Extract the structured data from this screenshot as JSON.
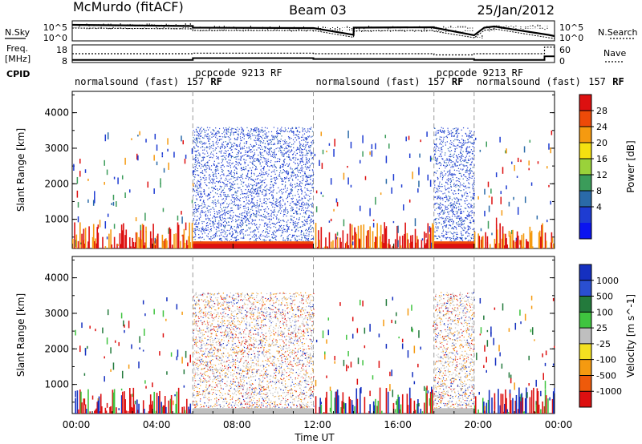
{
  "header": {
    "station": "McMurdo (fitACF)",
    "beam": "Beam 03",
    "date": "25/Jan/2012"
  },
  "side_labels": {
    "nsky": "N.Sky",
    "nsearch": "N.Search",
    "freq": "Freq.",
    "freq_unit": "[MHz]",
    "nave": "Nave",
    "cpid": "CPID"
  },
  "chart_data": [
    {
      "type": "line",
      "panel": "noise",
      "y_ticks_left": [
        "10^5",
        "10^0"
      ],
      "y_ticks_right": [
        "10^5",
        "10^0"
      ],
      "series": [
        {
          "name": "N.Sky",
          "x": [
            0,
            6,
            6,
            12,
            14,
            14.01,
            18,
            18.01,
            20,
            20.5,
            21,
            23.7,
            24
          ],
          "values": [
            4.0,
            3.7,
            3.3,
            3.2,
            1.5,
            3.3,
            3.4,
            3.3,
            1.4,
            3.3,
            3.6,
            1.5,
            1.2
          ]
        },
        {
          "name": "N.Search",
          "x": [
            0,
            6,
            6,
            12,
            14,
            14.01,
            18,
            18.01,
            20,
            20.5,
            21,
            23.7,
            24
          ],
          "values": [
            3.2,
            3.0,
            2.6,
            2.6,
            0.9,
            2.5,
            2.6,
            2.4,
            0.8,
            2.6,
            3.0,
            0.8,
            0.6
          ]
        }
      ]
    },
    {
      "type": "line",
      "panel": "freq-nave",
      "y_ticks_left": [
        "18",
        "8"
      ],
      "y_ticks_right": [
        "60",
        "0"
      ],
      "series": [
        {
          "name": "Freq.",
          "x": [
            0,
            6,
            6,
            12,
            12,
            18,
            18,
            20,
            20,
            23.5,
            23.5,
            24
          ],
          "values": [
            9.5,
            9.5,
            10.5,
            10.5,
            10,
            10,
            10,
            10,
            9.5,
            9.5,
            11.5,
            11.5
          ]
        },
        {
          "name": "Nave",
          "x": [
            0,
            6,
            6,
            12,
            12,
            18,
            18,
            20,
            20,
            23.5,
            23.5,
            24
          ],
          "values": [
            30,
            30,
            32,
            32,
            30,
            30,
            26,
            26,
            30,
            30,
            52,
            52
          ]
        }
      ]
    },
    {
      "type": "table",
      "panel": "cpid",
      "segments": [
        {
          "label": "normalsound (fast)",
          "code": "157",
          "suffix": "RF",
          "start": 0,
          "end": 6
        },
        {
          "label": "pcpcode 9213 RF",
          "start": 6,
          "end": 12
        },
        {
          "label": "normalsound (fast)",
          "code": "157",
          "suffix": "RF",
          "start": 12,
          "end": 18
        },
        {
          "label": "pcpcode 9213 RF",
          "start": 18,
          "end": 20
        },
        {
          "label": "normalsound (fast)",
          "code": "157",
          "suffix": "RF",
          "start": 20,
          "end": 24
        }
      ]
    },
    {
      "type": "heatmap",
      "panel": "power",
      "ylabel": "Slant Range [km]",
      "ylim": [
        180,
        4600
      ],
      "y_ticks": [
        1000,
        2000,
        3000,
        4000
      ],
      "colorbar_label": "Power [dB]",
      "colorbar_ticks": [
        28,
        24,
        20,
        16,
        12,
        8,
        4
      ],
      "colorbar_colors": [
        "#dd1010",
        "#ee4a08",
        "#f59a10",
        "#f5e010",
        "#9ad23a",
        "#3b9c5a",
        "#2a6aa8",
        "#1e3cd2",
        "#0a14f0"
      ]
    },
    {
      "type": "heatmap",
      "panel": "velocity",
      "ylabel": "Slant Range [km]",
      "ylim": [
        180,
        4600
      ],
      "y_ticks": [
        1000,
        2000,
        3000,
        4000
      ],
      "xlabel": "Time UT",
      "x_ticks": [
        "00:00",
        "04:00",
        "08:00",
        "12:00",
        "16:00",
        "20:00",
        "00:00"
      ],
      "colorbar_label": "Velocity [m s^-1]",
      "colorbar_ticks": [
        1000,
        500,
        100,
        25,
        -25,
        -100,
        -500,
        -1000
      ],
      "colorbar_colors": [
        "#1530c0",
        "#2a4fd0",
        "#237a3c",
        "#3fc43f",
        "#bfbfbf",
        "#f4e020",
        "#f59a10",
        "#ee5a0a",
        "#dd1010"
      ]
    }
  ]
}
